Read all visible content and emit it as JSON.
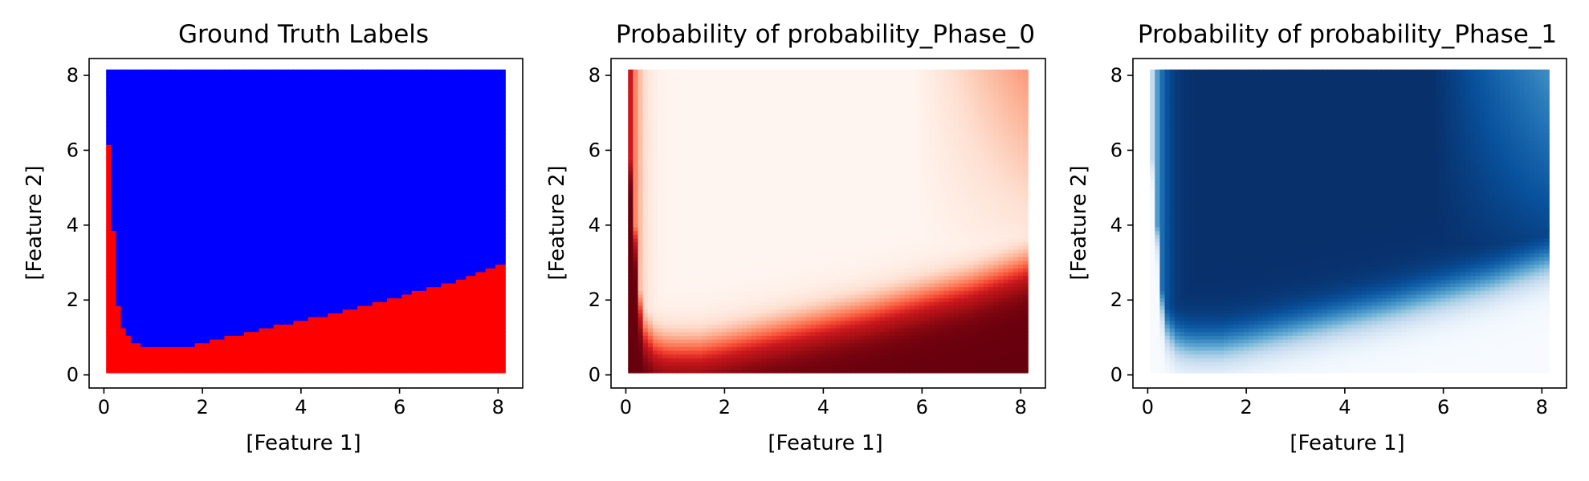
{
  "chart_data": [
    {
      "type": "scatter",
      "title": "Ground Truth Labels",
      "xlabel": "[Feature 1]",
      "ylabel": "[Feature 2]",
      "xlim": [
        -0.3,
        8.5
      ],
      "ylim": [
        -0.35,
        8.45
      ],
      "xticks": [
        0,
        2,
        4,
        6,
        8
      ],
      "yticks": [
        0,
        2,
        4,
        6,
        8
      ],
      "grid": false,
      "colormap": "categorical",
      "colors": {
        "phase_0": "#ff0000",
        "phase_1": "#0000ff"
      },
      "grid_points": {
        "x_min": 0.1,
        "x_max": 8.1,
        "y_min": 0.1,
        "y_max": 8.1
      },
      "boundary": {
        "x": [
          0.1,
          0.2,
          0.3,
          0.4,
          0.6,
          0.8,
          1.0,
          1.5,
          2.0,
          3.0,
          4.0,
          5.0,
          6.0,
          7.0,
          8.1
        ],
        "y": [
          6.1,
          3.9,
          1.9,
          1.2,
          0.85,
          0.75,
          0.72,
          0.72,
          0.85,
          1.15,
          1.45,
          1.75,
          2.1,
          2.45,
          2.95
        ]
      }
    },
    {
      "type": "scatter",
      "title": "Probability of probability_Phase_0",
      "xlabel": "[Feature 1]",
      "ylabel": "[Feature 2]",
      "xlim": [
        -0.3,
        8.5
      ],
      "ylim": [
        -0.35,
        8.45
      ],
      "xticks": [
        0,
        2,
        4,
        6,
        8
      ],
      "yticks": [
        0,
        2,
        4,
        6,
        8
      ],
      "grid": false,
      "colormap": "Reds",
      "grid_points": {
        "x_min": 0.1,
        "x_max": 8.1,
        "y_min": 0.1,
        "y_max": 8.1
      }
    },
    {
      "type": "scatter",
      "title": "Probability of probability_Phase_1",
      "xlabel": "[Feature 1]",
      "ylabel": "[Feature 2]",
      "xlim": [
        -0.3,
        8.5
      ],
      "ylim": [
        -0.35,
        8.45
      ],
      "xticks": [
        0,
        2,
        4,
        6,
        8
      ],
      "yticks": [
        0,
        2,
        4,
        6,
        8
      ],
      "grid": false,
      "colormap": "Blues",
      "grid_points": {
        "x_min": 0.1,
        "x_max": 8.1,
        "y_min": 0.1,
        "y_max": 8.1
      }
    }
  ]
}
